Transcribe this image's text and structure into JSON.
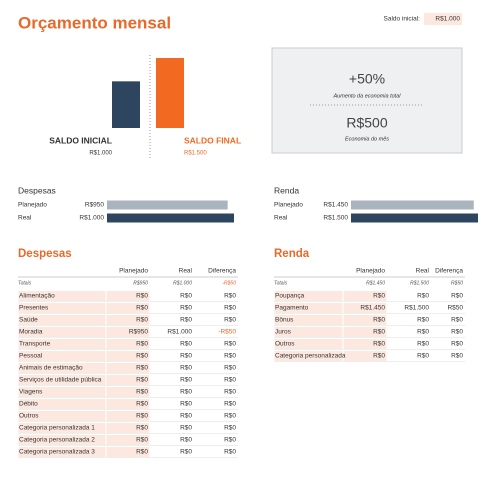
{
  "title": "Orçamento mensal",
  "opening_balance": {
    "label": "Saldo inicial:",
    "value": "R$1.000"
  },
  "balance_chart": {
    "categories": [
      "SALDO INICIAL",
      "SALDO FINAL"
    ],
    "values": [
      1000,
      1500
    ],
    "value_labels": [
      "R$1.000",
      "R$1.500"
    ],
    "colors": [
      "#2e4560",
      "#f26a22"
    ]
  },
  "summary": {
    "increase": "+50%",
    "increase_caption": "Aumento da economia total",
    "savings": "R$500",
    "savings_caption": "Economia do mês"
  },
  "expense_bars": {
    "title": "Despesas",
    "labels": [
      "Planejado",
      "Real"
    ],
    "values": [
      950,
      1000
    ],
    "value_labels": [
      "R$950",
      "R$1.000"
    ],
    "colors": [
      "#aab4bf",
      "#2e4560"
    ]
  },
  "income_bars": {
    "title": "Renda",
    "labels": [
      "Planejado",
      "Real"
    ],
    "values": [
      1450,
      1500
    ],
    "value_labels": [
      "R$1.450",
      "R$1.500"
    ],
    "colors": [
      "#aab4bf",
      "#2e4560"
    ]
  },
  "expense_table": {
    "title": "Despesas",
    "columns": [
      "Planejado",
      "Real",
      "Diferença"
    ],
    "totals": [
      "Totais",
      "R$950",
      "R$1.000",
      "-R$50"
    ],
    "rows": [
      [
        "Alimentação",
        "R$0",
        "R$0",
        "R$0"
      ],
      [
        "Presentes",
        "R$0",
        "R$0",
        "R$0"
      ],
      [
        "Saúde",
        "R$0",
        "R$0",
        "R$0"
      ],
      [
        "Moradia",
        "R$950",
        "R$1.000",
        "-R$50"
      ],
      [
        "Transporte",
        "R$0",
        "R$0",
        "R$0"
      ],
      [
        "Pessoal",
        "R$0",
        "R$0",
        "R$0"
      ],
      [
        "Animais de estimação",
        "R$0",
        "R$0",
        "R$0"
      ],
      [
        "Serviços de utilidade pública",
        "R$0",
        "R$0",
        "R$0"
      ],
      [
        "Viagens",
        "R$0",
        "R$0",
        "R$0"
      ],
      [
        "Débito",
        "R$0",
        "R$0",
        "R$0"
      ],
      [
        "Outros",
        "R$0",
        "R$0",
        "R$0"
      ],
      [
        "Categoria personalizada 1",
        "R$0",
        "R$0",
        "R$0"
      ],
      [
        "Categoria personalizada 2",
        "R$0",
        "R$0",
        "R$0"
      ],
      [
        "Categoria personalizada 3",
        "R$0",
        "R$0",
        "R$0"
      ]
    ]
  },
  "income_table": {
    "title": "Renda",
    "columns": [
      "Planejado",
      "Real",
      "Diferença"
    ],
    "totals": [
      "Totais",
      "R$1.450",
      "R$1.500",
      "R$50"
    ],
    "rows": [
      [
        "Poupança",
        "R$0",
        "R$0",
        "R$0"
      ],
      [
        "Pagamento",
        "R$1.450",
        "R$1.500",
        "R$50"
      ],
      [
        "Bônus",
        "R$0",
        "R$0",
        "R$0"
      ],
      [
        "Juros",
        "R$0",
        "R$0",
        "R$0"
      ],
      [
        "Outros",
        "R$0",
        "R$0",
        "R$0"
      ],
      [
        "Categoria personalizada",
        "R$0",
        "R$0",
        "R$0"
      ]
    ]
  }
}
